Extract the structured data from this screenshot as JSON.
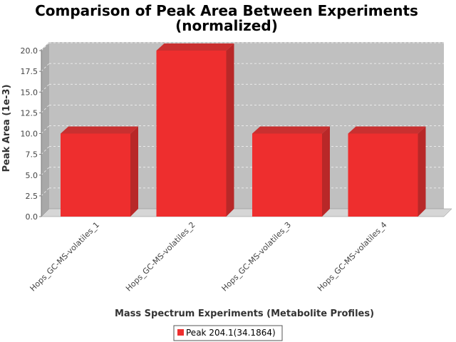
{
  "chart_data": {
    "type": "bar",
    "title": "Comparison of Peak Area Between Experiments",
    "subtitle": "(normalized)",
    "xlabel": "Mass Spectrum Experiments (Metabolite Profiles)",
    "ylabel": "Peak Area (1e-3)",
    "categories": [
      "Hops_GC-MS-volatiles_1",
      "Hops_GC-MS-volatiles_2",
      "Hops_GC-MS-volatiles_3",
      "Hops_GC-MS-volatiles_4"
    ],
    "series": [
      {
        "name": "Peak 204.1(34.1864)",
        "values": [
          10.0,
          20.0,
          10.0,
          10.0
        ]
      }
    ],
    "ylim": [
      0,
      20
    ],
    "yticks": [
      "0.0",
      "2.5",
      "5.0",
      "7.5",
      "10.0",
      "12.5",
      "15.0",
      "17.5",
      "20.0"
    ],
    "grid": true,
    "legend_position": "bottom",
    "colors": {
      "bar_front": "#ee2e2e",
      "bar_side": "#b82828",
      "bar_top": "#c93030",
      "plot_background": "#c0c0c0",
      "plot_wall": "#a8a8a8",
      "plot_floor": "#d6d6d6"
    }
  }
}
